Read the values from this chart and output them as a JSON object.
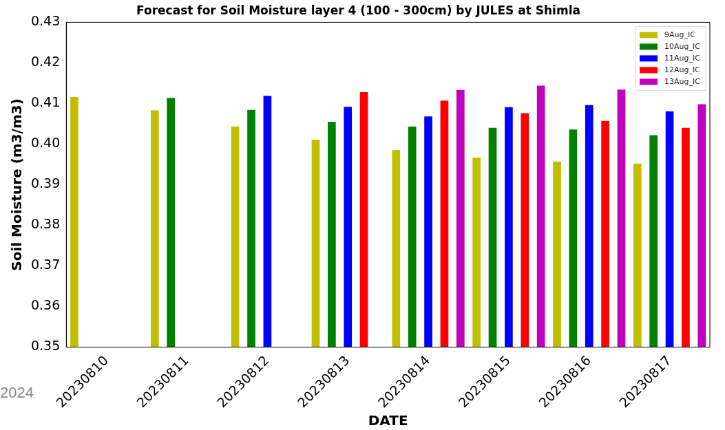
{
  "chart_data": {
    "type": "bar",
    "title": "Forecast for Soil Moisture layer 4 (100 - 300cm) by JULES at Shimla",
    "xlabel": "DATE",
    "ylabel": "Soil Moisture (m3/m3)",
    "categories": [
      "20230810",
      "20230811",
      "20230812",
      "20230813",
      "20230814",
      "20230815",
      "20230816",
      "20230817"
    ],
    "series": [
      {
        "name": "9Aug_IC",
        "color": "#bfbf00",
        "values": [
          0.4116,
          0.4083,
          0.4043,
          0.4011,
          0.3985,
          0.3967,
          0.3957,
          0.3952
        ]
      },
      {
        "name": "10Aug_IC",
        "color": "#008000",
        "values": [
          null,
          0.4114,
          0.4084,
          0.4055,
          0.4043,
          0.404,
          0.4036,
          0.4022
        ]
      },
      {
        "name": "11Aug_IC",
        "color": "#0000ff",
        "values": [
          null,
          null,
          0.4119,
          0.4092,
          0.4068,
          0.4091,
          0.4096,
          0.4081
        ]
      },
      {
        "name": "12Aug_IC",
        "color": "#ff0000",
        "values": [
          null,
          null,
          null,
          0.4128,
          0.4107,
          0.4076,
          0.4057,
          0.404
        ]
      },
      {
        "name": "13Aug_IC",
        "color": "#bf00bf",
        "values": [
          null,
          null,
          null,
          null,
          0.4133,
          0.4144,
          0.4134,
          0.4098
        ]
      }
    ],
    "ylim": [
      0.35,
      0.43
    ],
    "yticks": [
      {
        "value": 0.35,
        "label": "0.35"
      },
      {
        "value": 0.36,
        "label": "0.36"
      },
      {
        "value": 0.37,
        "label": "0.37"
      },
      {
        "value": 0.38,
        "label": "0.38"
      },
      {
        "value": 0.39,
        "label": "0.39"
      },
      {
        "value": 0.4,
        "label": "0.40"
      },
      {
        "value": 0.41,
        "label": "0.41"
      },
      {
        "value": 0.42,
        "label": "0.42"
      },
      {
        "value": 0.43,
        "label": "0.43"
      }
    ],
    "grid": false,
    "legend": "top right",
    "annotations": [
      "2024"
    ]
  }
}
